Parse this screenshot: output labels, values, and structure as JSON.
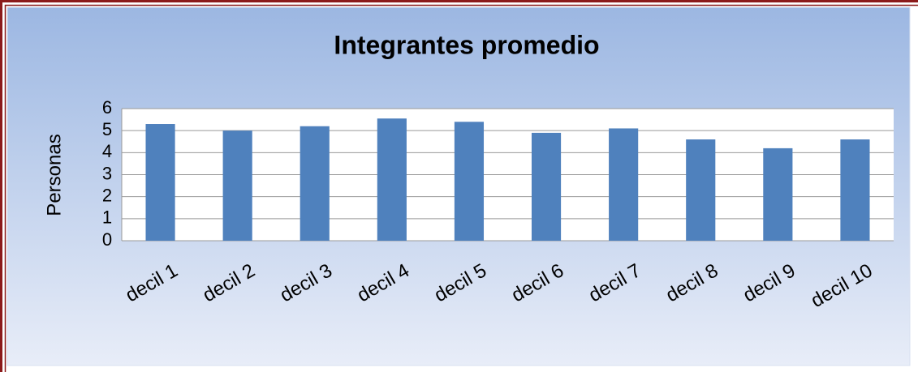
{
  "chart_data": {
    "type": "bar",
    "title": "Integrantes promedio",
    "y_label": "Personas",
    "categories": [
      "decil 1",
      "decil 2",
      "decil 3",
      "decil 4",
      "decil 5",
      "decil 6",
      "decil 7",
      "decil 8",
      "decil 9",
      "decil 10"
    ],
    "values": [
      5.3,
      5.0,
      5.2,
      5.55,
      5.4,
      4.9,
      5.1,
      4.6,
      4.2,
      4.6
    ],
    "color": "#4f81bd",
    "ylim": [
      0,
      6
    ],
    "yticks": [
      0,
      1,
      2,
      3,
      4,
      5,
      6
    ],
    "grid": true
  }
}
